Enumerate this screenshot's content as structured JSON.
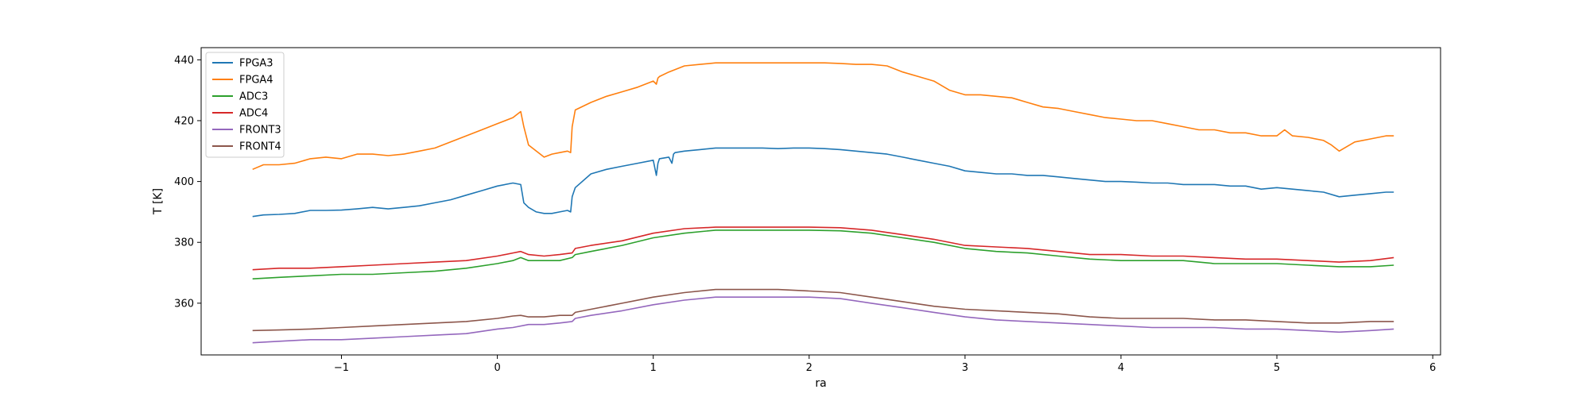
{
  "chart_data": {
    "type": "line",
    "title": "",
    "xlabel": "ra",
    "ylabel": "T [K]",
    "xlim": [
      -1.9,
      6.05
    ],
    "ylim": [
      343,
      444
    ],
    "xticks": [
      -1,
      0,
      1,
      2,
      3,
      4,
      5,
      6
    ],
    "yticks": [
      360,
      380,
      400,
      420,
      440
    ],
    "grid": false,
    "legend_position": "top-left",
    "series": [
      {
        "name": "FPGA3",
        "color": "#1f77b4",
        "x": [
          -1.57,
          -1.5,
          -1.4,
          -1.3,
          -1.2,
          -1.1,
          -1.0,
          -0.9,
          -0.8,
          -0.7,
          -0.6,
          -0.5,
          -0.4,
          -0.3,
          -0.2,
          -0.1,
          0.0,
          0.1,
          0.15,
          0.17,
          0.2,
          0.25,
          0.3,
          0.35,
          0.4,
          0.45,
          0.47,
          0.48,
          0.5,
          0.6,
          0.7,
          0.8,
          0.9,
          1.0,
          1.02,
          1.03,
          1.04,
          1.1,
          1.12,
          1.13,
          1.14,
          1.2,
          1.3,
          1.4,
          1.5,
          1.6,
          1.7,
          1.8,
          1.9,
          2.0,
          2.1,
          2.2,
          2.3,
          2.4,
          2.5,
          2.6,
          2.7,
          2.8,
          2.9,
          3.0,
          3.1,
          3.2,
          3.3,
          3.4,
          3.5,
          3.6,
          3.7,
          3.8,
          3.9,
          4.0,
          4.1,
          4.2,
          4.3,
          4.4,
          4.5,
          4.6,
          4.7,
          4.8,
          4.9,
          5.0,
          5.1,
          5.2,
          5.3,
          5.4,
          5.5,
          5.6,
          5.7,
          5.75
        ],
        "y": [
          388.5,
          389,
          389.2,
          389.5,
          390.5,
          390.5,
          390.6,
          391,
          391.5,
          391,
          391.5,
          392,
          393,
          394,
          395.5,
          397,
          398.5,
          399.5,
          399,
          393,
          391.5,
          390,
          389.5,
          389.5,
          390,
          390.5,
          390,
          395,
          398,
          402.5,
          404,
          405,
          406,
          407,
          402,
          406,
          407.5,
          408,
          406,
          409,
          409.5,
          410,
          410.5,
          411,
          411,
          411,
          411,
          410.8,
          411,
          411,
          410.8,
          410.5,
          410,
          409.5,
          409,
          408,
          407,
          406,
          405,
          403.5,
          403,
          402.5,
          402.5,
          402,
          402,
          401.5,
          401,
          400.5,
          400,
          400,
          399.8,
          399.5,
          399.5,
          399,
          399,
          399,
          398.5,
          398.5,
          397.5,
          398,
          397.5,
          397,
          396.5,
          395,
          395.5,
          396,
          396.5,
          396.5
        ]
      },
      {
        "name": "FPGA4",
        "color": "#ff7f0e",
        "x": [
          -1.57,
          -1.5,
          -1.4,
          -1.3,
          -1.2,
          -1.1,
          -1.0,
          -0.9,
          -0.8,
          -0.7,
          -0.6,
          -0.5,
          -0.4,
          -0.3,
          -0.2,
          -0.1,
          0.0,
          0.1,
          0.15,
          0.17,
          0.2,
          0.25,
          0.3,
          0.35,
          0.4,
          0.45,
          0.47,
          0.48,
          0.5,
          0.6,
          0.7,
          0.8,
          0.9,
          1.0,
          1.02,
          1.03,
          1.04,
          1.1,
          1.2,
          1.3,
          1.4,
          1.5,
          1.6,
          1.7,
          1.8,
          1.9,
          2.0,
          2.1,
          2.2,
          2.3,
          2.4,
          2.5,
          2.6,
          2.7,
          2.8,
          2.9,
          3.0,
          3.1,
          3.2,
          3.3,
          3.4,
          3.5,
          3.6,
          3.7,
          3.8,
          3.9,
          4.0,
          4.1,
          4.2,
          4.3,
          4.4,
          4.5,
          4.6,
          4.7,
          4.8,
          4.9,
          5.0,
          5.05,
          5.1,
          5.2,
          5.3,
          5.35,
          5.4,
          5.5,
          5.6,
          5.7,
          5.75
        ],
        "y": [
          404,
          405.5,
          405.5,
          406,
          407.5,
          408,
          407.5,
          409,
          409,
          408.5,
          409,
          410,
          411,
          413,
          415,
          417,
          419,
          421,
          423,
          418,
          412,
          410,
          408,
          409,
          409.5,
          410,
          409.5,
          418,
          423.5,
          426,
          428,
          429.5,
          431,
          433,
          432,
          434,
          434.5,
          436,
          438,
          438.5,
          439,
          439,
          439,
          439,
          439,
          439,
          439,
          439,
          438.8,
          438.5,
          438.5,
          438,
          436,
          434.5,
          433,
          430,
          428.5,
          428.5,
          428,
          427.5,
          426,
          424.5,
          424,
          423,
          422,
          421,
          420.5,
          420,
          420,
          419,
          418,
          417,
          417,
          416,
          416,
          415,
          415,
          417,
          415,
          414.5,
          413.5,
          412,
          410,
          413,
          414,
          415,
          415
        ]
      },
      {
        "name": "ADC3",
        "color": "#2ca02c",
        "x": [
          -1.57,
          -1.4,
          -1.2,
          -1.0,
          -0.8,
          -0.6,
          -0.4,
          -0.2,
          0.0,
          0.1,
          0.15,
          0.2,
          0.3,
          0.4,
          0.48,
          0.5,
          0.6,
          0.8,
          1.0,
          1.2,
          1.4,
          1.6,
          1.8,
          2.0,
          2.2,
          2.4,
          2.6,
          2.8,
          3.0,
          3.2,
          3.4,
          3.6,
          3.8,
          4.0,
          4.2,
          4.4,
          4.6,
          4.8,
          5.0,
          5.2,
          5.4,
          5.6,
          5.75
        ],
        "y": [
          368,
          368.5,
          369,
          369.5,
          369.5,
          370,
          370.5,
          371.5,
          373,
          374,
          375,
          374,
          374,
          374,
          375,
          376,
          377,
          379,
          381.5,
          383,
          384,
          384,
          384,
          384,
          383.8,
          383,
          381.5,
          380,
          378,
          377,
          376.5,
          375.5,
          374.5,
          374,
          374,
          374,
          373,
          373,
          373,
          372.5,
          372,
          372,
          372.5
        ]
      },
      {
        "name": "ADC4",
        "color": "#d62728",
        "x": [
          -1.57,
          -1.4,
          -1.2,
          -1.0,
          -0.8,
          -0.6,
          -0.4,
          -0.2,
          0.0,
          0.1,
          0.15,
          0.2,
          0.3,
          0.4,
          0.48,
          0.5,
          0.6,
          0.8,
          1.0,
          1.2,
          1.4,
          1.6,
          1.8,
          2.0,
          2.2,
          2.4,
          2.6,
          2.8,
          3.0,
          3.2,
          3.4,
          3.6,
          3.8,
          4.0,
          4.2,
          4.4,
          4.6,
          4.8,
          5.0,
          5.2,
          5.4,
          5.6,
          5.75
        ],
        "y": [
          371,
          371.5,
          371.5,
          372,
          372.5,
          373,
          373.5,
          374,
          375.5,
          376.5,
          377,
          376,
          375.5,
          376,
          376.5,
          378,
          379,
          380.5,
          383,
          384.5,
          385,
          385,
          385,
          385,
          384.8,
          384,
          382.5,
          381,
          379,
          378.5,
          378,
          377,
          376,
          376,
          375.5,
          375.5,
          375,
          374.5,
          374.5,
          374,
          373.5,
          374,
          375
        ]
      },
      {
        "name": "FRONT3",
        "color": "#9467bd",
        "x": [
          -1.57,
          -1.4,
          -1.2,
          -1.0,
          -0.8,
          -0.6,
          -0.4,
          -0.2,
          0.0,
          0.1,
          0.2,
          0.3,
          0.4,
          0.48,
          0.5,
          0.6,
          0.8,
          1.0,
          1.2,
          1.4,
          1.6,
          1.8,
          2.0,
          2.2,
          2.4,
          2.6,
          2.8,
          3.0,
          3.2,
          3.4,
          3.6,
          3.8,
          4.0,
          4.2,
          4.4,
          4.6,
          4.8,
          5.0,
          5.2,
          5.4,
          5.6,
          5.75
        ],
        "y": [
          347,
          347.5,
          348,
          348,
          348.5,
          349,
          349.5,
          350,
          351.5,
          352,
          353,
          353,
          353.5,
          354,
          355,
          356,
          357.5,
          359.5,
          361,
          362,
          362,
          362,
          362,
          361.5,
          360,
          358.5,
          357,
          355.5,
          354.5,
          354,
          353.5,
          353,
          352.5,
          352,
          352,
          352,
          351.5,
          351.5,
          351,
          350.5,
          351,
          351.5
        ]
      },
      {
        "name": "FRONT4",
        "color": "#8c564b",
        "x": [
          -1.57,
          -1.4,
          -1.2,
          -1.0,
          -0.8,
          -0.6,
          -0.4,
          -0.2,
          0.0,
          0.1,
          0.15,
          0.2,
          0.3,
          0.4,
          0.48,
          0.5,
          0.6,
          0.8,
          1.0,
          1.2,
          1.4,
          1.6,
          1.8,
          2.0,
          2.2,
          2.4,
          2.6,
          2.8,
          3.0,
          3.2,
          3.4,
          3.6,
          3.8,
          4.0,
          4.2,
          4.4,
          4.6,
          4.8,
          5.0,
          5.2,
          5.4,
          5.6,
          5.75
        ],
        "y": [
          351,
          351.2,
          351.5,
          352,
          352.5,
          353,
          353.5,
          354,
          355,
          355.8,
          356,
          355.5,
          355.5,
          356,
          356,
          357,
          358,
          360,
          362,
          363.5,
          364.5,
          364.5,
          364.5,
          364,
          363.5,
          362,
          360.5,
          359,
          358,
          357.5,
          357,
          356.5,
          355.5,
          355,
          355,
          355,
          354.5,
          354.5,
          354,
          353.5,
          353.5,
          354,
          354
        ]
      }
    ]
  }
}
